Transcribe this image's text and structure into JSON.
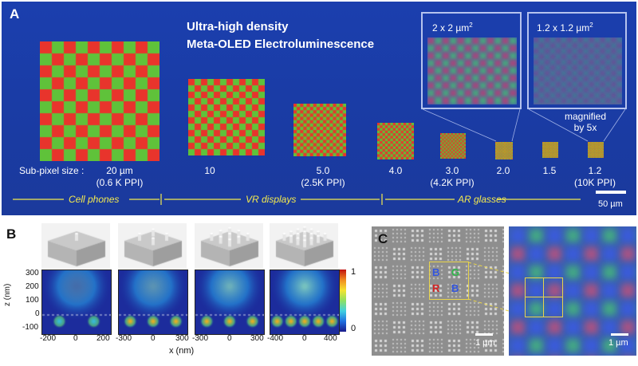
{
  "panel_a": {
    "letter": "A",
    "title_line1": "Ultra-high density",
    "title_line2": "Meta-OLED Electroluminescence",
    "inset1": {
      "label": "2 x 2 µm",
      "sup": "2"
    },
    "inset2": {
      "label": "1.2 x 1.2 µm",
      "sup": "2"
    },
    "magnified_line1": "magnified",
    "magnified_line2": "by 5x",
    "subpixel_label": "Sub-pixel size :",
    "sizes": [
      {
        "value": "20   µm",
        "ppi": "(0.6 K PPI)"
      },
      {
        "value": "10",
        "ppi": ""
      },
      {
        "value": "5.0",
        "ppi": "(2.5K PPI)"
      },
      {
        "value": "4.0",
        "ppi": ""
      },
      {
        "value": "3.0",
        "ppi": "(4.2K PPI)"
      },
      {
        "value": "2.0",
        "ppi": ""
      },
      {
        "value": "1.5",
        "ppi": ""
      },
      {
        "value": "1.2",
        "ppi": "(10K PPI)"
      }
    ],
    "categories": [
      "Cell phones",
      "VR displays",
      "AR glasses"
    ],
    "scale_bar": "50 µm",
    "colors": {
      "red": "#e8342c",
      "green": "#5fc23a",
      "yellow": "#d6cf2c",
      "bg": "#1b3fae"
    }
  },
  "panel_b": {
    "letter": "B",
    "y_ticks": [
      "300",
      "200",
      "100",
      "0",
      "-100"
    ],
    "y_label": "z (nm)",
    "x_ticks": [
      [
        "-200",
        "0",
        "200"
      ],
      [
        "-300",
        "0",
        "300"
      ],
      [
        "-300",
        "0",
        "300"
      ],
      [
        "-400",
        "0",
        "400"
      ]
    ],
    "x_label": "x (nm)",
    "colorbar_max": "1",
    "colorbar_min": "0"
  },
  "panel_c": {
    "letter": "C",
    "mark_b1": "B",
    "mark_g": "G",
    "mark_r": "R",
    "mark_b2": "B",
    "scale_left": "1 µm",
    "scale_right": "1 µm"
  }
}
